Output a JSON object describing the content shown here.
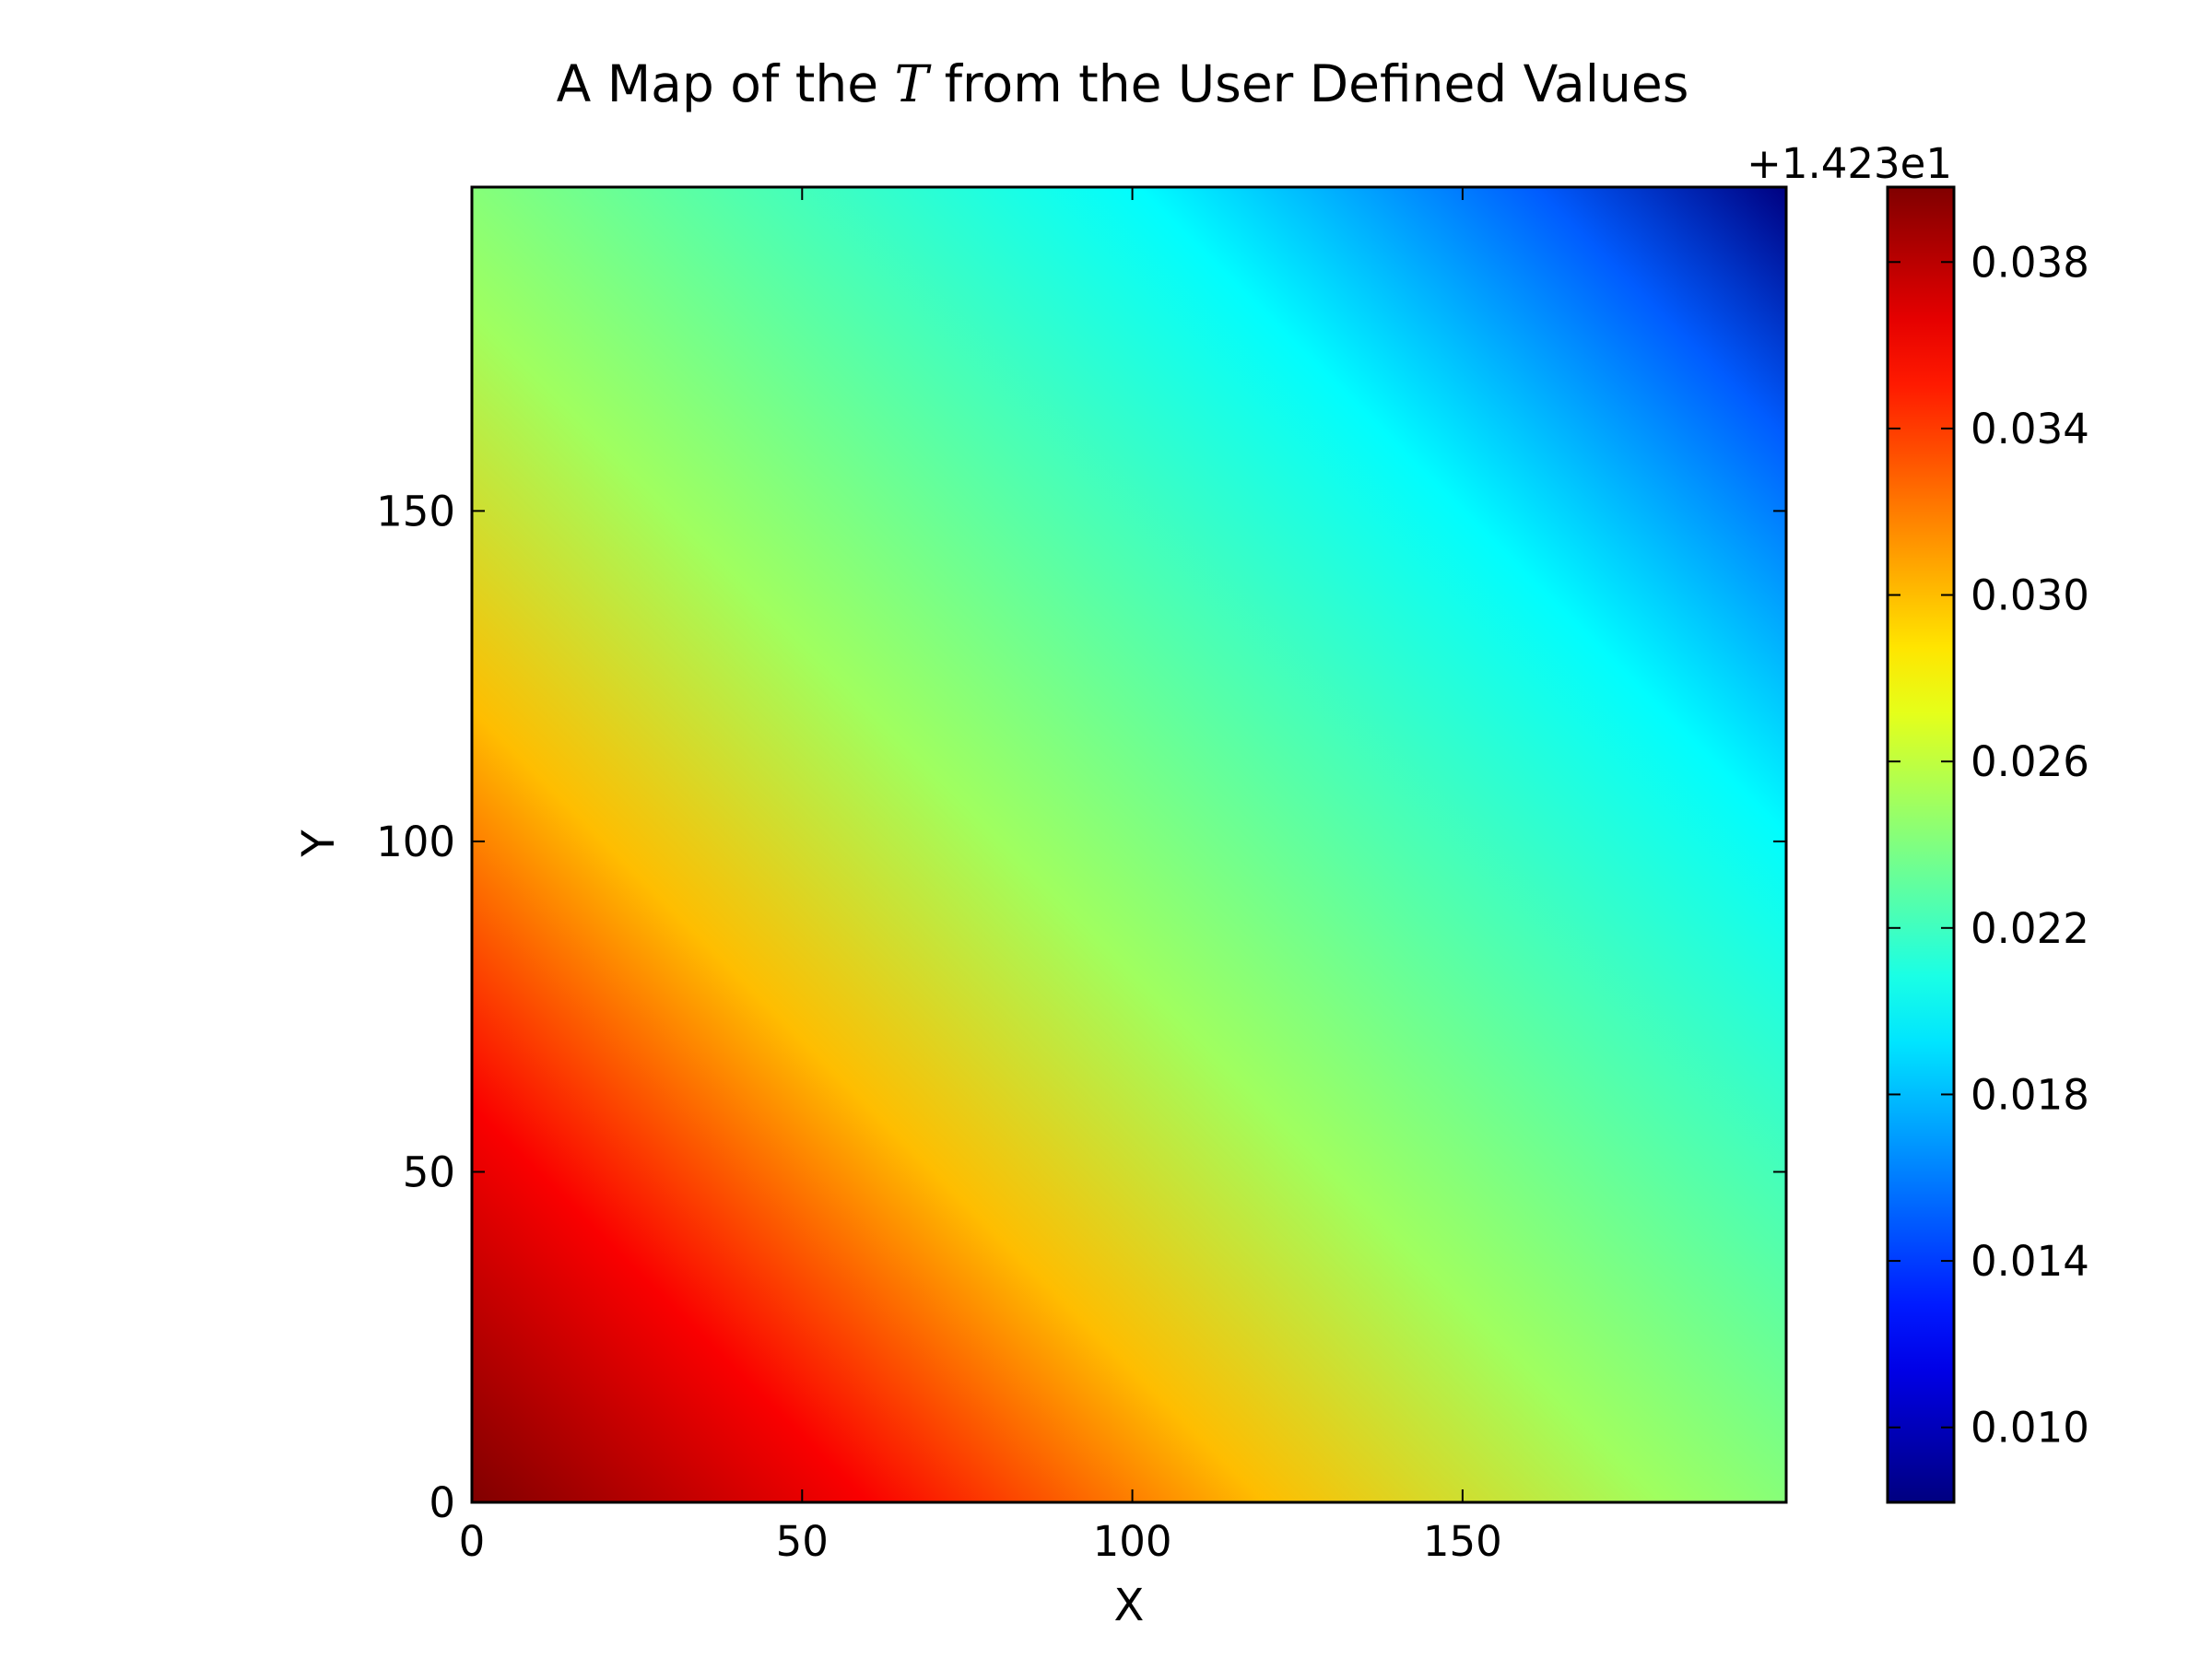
{
  "chart_data": {
    "type": "heatmap",
    "title": {
      "before": "A Map of the ",
      "symbol": "T",
      "after": " from the User Defined Values"
    },
    "xlabel": "X",
    "ylabel": "Y",
    "xlim": [
      0,
      199
    ],
    "ylim": [
      0,
      199
    ],
    "x_ticks": [
      {
        "value": 0,
        "label": "0"
      },
      {
        "value": 50,
        "label": "50"
      },
      {
        "value": 100,
        "label": "100"
      },
      {
        "value": 150,
        "label": "150"
      }
    ],
    "y_ticks": [
      {
        "value": 0,
        "label": "0"
      },
      {
        "value": 50,
        "label": "50"
      },
      {
        "value": 100,
        "label": "100"
      },
      {
        "value": 150,
        "label": "150"
      }
    ],
    "colormap": "jet",
    "colorbar": {
      "offset_label": "+1.423e1",
      "vmin": 0.0082,
      "vmax": 0.0398,
      "ticks": [
        {
          "value": 0.01,
          "label": "0.010"
        },
        {
          "value": 0.014,
          "label": "0.014"
        },
        {
          "value": 0.018,
          "label": "0.018"
        },
        {
          "value": 0.022,
          "label": "0.022"
        },
        {
          "value": 0.026,
          "label": "0.026"
        },
        {
          "value": 0.03,
          "label": "0.030"
        },
        {
          "value": 0.034,
          "label": "0.034"
        },
        {
          "value": 0.038,
          "label": "0.038"
        }
      ]
    },
    "field_samples": {
      "description_units": "value minus 14.23 offset, sampled along the diagonal x=y",
      "s": [
        0,
        30,
        60,
        90,
        120,
        150,
        180,
        199
      ],
      "values": [
        0.0398,
        0.036,
        0.03,
        0.025,
        0.0225,
        0.02,
        0.015,
        0.0082
      ]
    }
  }
}
